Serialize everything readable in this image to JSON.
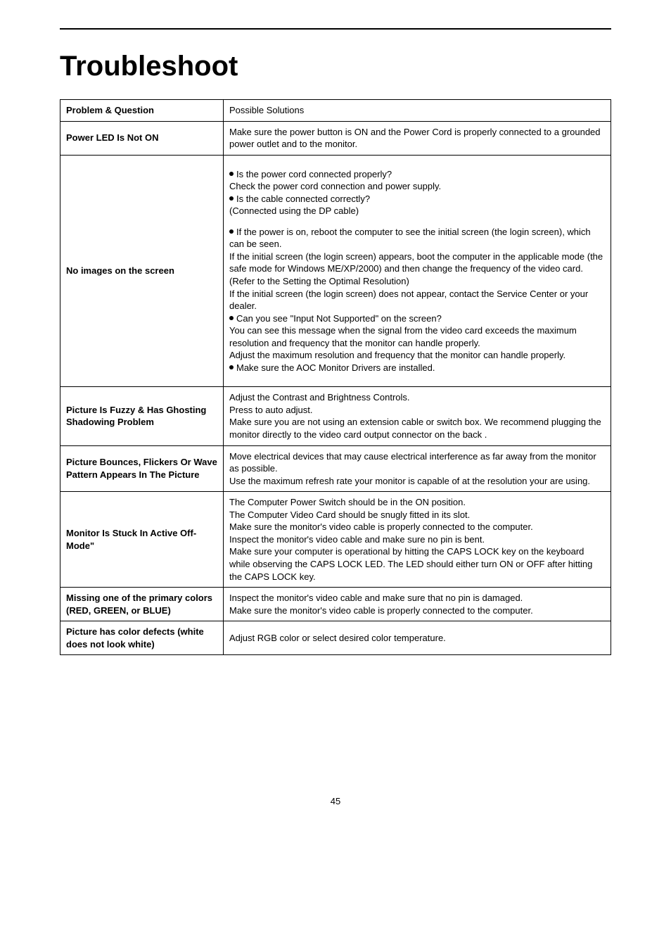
{
  "page_number": "45",
  "heading": "Troubleshoot",
  "rows": [
    {
      "label": "Problem & Question",
      "value": "Possible Solutions"
    },
    {
      "label": "Power LED Is Not ON",
      "value": "Make sure the power button is ON and the Power Cord is properly connected to a grounded power outlet and to the monitor."
    },
    {
      "label": "No images on the screen",
      "value_blocks": [
        {
          "spacer_before": true,
          "bullet": true,
          "text": "Is the power cord connected properly?"
        },
        {
          "text": "Check the power cord connection and power supply."
        },
        {
          "bullet": true,
          "text": "Is the cable connected correctly?"
        },
        {
          "text": "(Connected using the DP cable)"
        },
        {
          "spacer_before": true,
          "bullet": true,
          "text": "If the power is on, reboot the computer to see the initial screen (the login screen), which can be seen."
        },
        {
          "text": "If the initial screen (the login screen) appears, boot the computer in the applicable mode (the safe mode for Windows ME/XP/2000) and then change the frequency of the video card."
        },
        {
          "text": "(Refer to the Setting the Optimal Resolution)"
        },
        {
          "text": "If the initial screen (the login screen) does not appear, contact the Service Center or your dealer."
        },
        {
          "bullet": true,
          "text": "Can you see \"Input Not Supported\" on the screen?"
        },
        {
          "text": "You can see this message when the signal from the video card exceeds the maximum resolution and frequency that the monitor can handle properly."
        },
        {
          "text": "Adjust the maximum resolution and frequency that the monitor can handle properly."
        },
        {
          "bullet": true,
          "text": "Make sure the AOC Monitor Drivers are installed.",
          "spacer_after": true
        }
      ]
    },
    {
      "label": "Picture Is Fuzzy & Has Ghosting Shadowing Problem",
      "value": "Adjust the Contrast and Brightness Controls.\nPress to auto adjust.\nMake sure you are not using an extension cable or switch box. We recommend plugging the monitor directly to the video card output connector on the back ."
    },
    {
      "label": "Picture Bounces, Flickers Or Wave Pattern Appears In The Picture",
      "value": "Move electrical devices that may cause electrical interference as far away from the monitor as possible.\nUse the maximum refresh rate your monitor is capable of at the resolution your are using."
    },
    {
      "label": "Monitor Is Stuck In Active Off-Mode\"",
      "value": "The Computer Power Switch should be in the ON position.\nThe Computer Video Card should be snugly fitted in its slot.\nMake sure the monitor's video cable is properly connected to the computer.\nInspect the monitor's video cable and make sure no pin is bent.\nMake sure your computer is operational by hitting the CAPS LOCK key on the keyboard while observing the CAPS LOCK LED. The LED should either turn ON or OFF after hitting the CAPS LOCK key."
    },
    {
      "label": "Missing one of the primary colors (RED, GREEN, or BLUE)",
      "value": "Inspect the monitor's video cable and make sure that no pin is damaged.\nMake sure the monitor's video cable is properly connected to the computer."
    },
    {
      "label": "Picture has color defects (white does not look white)",
      "value": "Adjust RGB color or select desired color temperature."
    }
  ]
}
